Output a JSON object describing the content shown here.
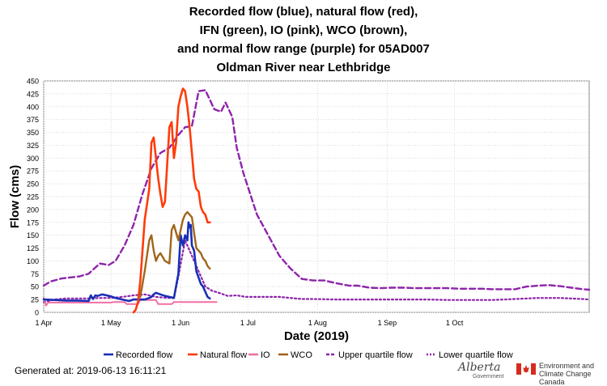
{
  "title_lines": [
    "Recorded flow (blue), natural flow (red),",
    "IFN (green), IO (pink), WCO (brown),",
    "and normal flow range (purple) for 05AD007",
    "Oldman River near Lethbridge"
  ],
  "footer": {
    "generated": "Generated at: 2019-06-13 16:11:21",
    "alberta": "Alberta",
    "alberta_sub": "Government",
    "eccc_line1": "Environment and",
    "eccc_line2": "Climate Change Canada"
  },
  "chart_data": {
    "type": "line",
    "xlabel": "Date (2019)",
    "ylabel": "Flow (cms)",
    "xlim": [
      0,
      243
    ],
    "ylim": [
      0,
      450
    ],
    "x_ticks": [
      {
        "day": 0,
        "label": "1 Apr"
      },
      {
        "day": 30,
        "label": "1 May"
      },
      {
        "day": 61,
        "label": "1 Jun"
      },
      {
        "day": 91,
        "label": "1 Jul"
      },
      {
        "day": 122,
        "label": "1 Aug"
      },
      {
        "day": 153,
        "label": "1 Sep"
      },
      {
        "day": 183,
        "label": "1 Oct"
      }
    ],
    "y_ticks": [
      0,
      25,
      50,
      75,
      100,
      125,
      150,
      175,
      200,
      225,
      250,
      275,
      300,
      325,
      350,
      375,
      400,
      425,
      450
    ],
    "grid": true,
    "legend_position": "bottom",
    "series": [
      {
        "name": "Upper quartile flow",
        "color": "#8e24aa",
        "style": "dashed",
        "width": 2.4,
        "x": [
          0,
          3,
          8,
          12,
          16,
          20,
          25,
          29,
          32,
          36,
          40,
          44,
          48,
          52,
          56,
          60,
          63,
          66,
          69,
          72,
          76,
          79,
          81,
          84,
          86,
          89,
          92,
          95,
          100,
          105,
          110,
          115,
          120,
          125,
          130,
          136,
          140,
          145,
          150,
          155,
          160,
          165,
          170,
          175,
          180,
          185,
          190,
          195,
          200,
          205,
          210,
          215,
          220,
          225,
          230,
          235,
          240,
          243
        ],
        "y": [
          52,
          60,
          66,
          68,
          70,
          75,
          95,
          92,
          100,
          130,
          170,
          230,
          280,
          310,
          320,
          345,
          360,
          362,
          430,
          432,
          395,
          390,
          408,
          380,
          320,
          270,
          230,
          190,
          150,
          110,
          85,
          65,
          62,
          62,
          57,
          52,
          52,
          48,
          47,
          48,
          48,
          47,
          47,
          47,
          47,
          46,
          46,
          46,
          45,
          45,
          45,
          50,
          52,
          53,
          51,
          48,
          45,
          44
        ]
      },
      {
        "name": "Lower quartile flow",
        "color": "#8e24aa",
        "style": "dotted",
        "width": 2.2,
        "x": [
          0,
          5,
          10,
          15,
          20,
          25,
          30,
          35,
          40,
          45,
          50,
          55,
          58,
          60,
          63,
          66,
          69,
          72,
          75,
          78,
          82,
          86,
          90,
          95,
          100,
          105,
          110,
          115,
          120,
          130,
          140,
          150,
          160,
          170,
          180,
          190,
          200,
          210,
          220,
          230,
          240,
          243
        ],
        "y": [
          20,
          25,
          27,
          27,
          27,
          28,
          28,
          30,
          33,
          35,
          30,
          28,
          28,
          70,
          140,
          110,
          80,
          50,
          42,
          38,
          32,
          33,
          30,
          30,
          30,
          30,
          28,
          26,
          26,
          25,
          25,
          25,
          25,
          25,
          24,
          24,
          24,
          26,
          28,
          28,
          26,
          25
        ]
      },
      {
        "name": "IO",
        "color": "#f06fa4",
        "style": "solid",
        "width": 2,
        "x": [
          0,
          1,
          2,
          30,
          31,
          36,
          37,
          42,
          43,
          50,
          51,
          57,
          58,
          61,
          62,
          77
        ],
        "y": [
          28,
          13,
          19,
          19,
          20,
          20,
          16,
          16,
          24,
          24,
          16,
          16,
          20,
          20,
          20,
          20
        ]
      },
      {
        "name": "Recorded flow",
        "color": "#1a2fb5",
        "style": "solid",
        "width": 2.6,
        "x": [
          0,
          5,
          10,
          15,
          20,
          21,
          22,
          23,
          24,
          26,
          28,
          30,
          32,
          35,
          38,
          40,
          45,
          47,
          48,
          49,
          50,
          52,
          54,
          56,
          58,
          60,
          61,
          62,
          63,
          64,
          64.5,
          65,
          65.5,
          66,
          67,
          68,
          70,
          71,
          72,
          73,
          74
        ],
        "y": [
          25,
          24,
          23,
          23,
          22,
          33,
          26,
          33,
          32,
          35,
          33,
          31,
          28,
          25,
          22,
          25,
          25,
          28,
          30,
          35,
          38,
          35,
          32,
          30,
          28,
          75,
          150,
          130,
          150,
          140,
          175,
          165,
          170,
          130,
          120,
          80,
          55,
          50,
          40,
          30,
          27
        ]
      },
      {
        "name": "Natural flow",
        "color": "#ff3b0a",
        "style": "solid",
        "width": 2.6,
        "x": [
          40,
          41,
          42,
          43,
          45,
          47,
          48,
          49,
          50,
          51,
          52,
          53,
          54,
          56,
          57,
          58,
          59,
          60,
          61,
          62,
          63,
          64,
          65,
          66,
          67,
          68,
          69,
          70,
          71,
          72,
          73,
          74
        ],
        "y": [
          0,
          5,
          20,
          60,
          180,
          240,
          330,
          340,
          300,
          260,
          230,
          205,
          215,
          360,
          370,
          300,
          330,
          400,
          420,
          435,
          430,
          400,
          360,
          310,
          260,
          240,
          235,
          205,
          195,
          190,
          175,
          175
        ]
      },
      {
        "name": "WCO",
        "color": "#a0651a",
        "style": "solid",
        "width": 2.4,
        "x": [
          43,
          45,
          47,
          48,
          49,
          50,
          51,
          52,
          54,
          56,
          57,
          58,
          59,
          60,
          61,
          62,
          63,
          64,
          65,
          66,
          67,
          68,
          69,
          70,
          71,
          72,
          73,
          74
        ],
        "y": [
          30,
          80,
          140,
          150,
          120,
          100,
          110,
          115,
          100,
          95,
          160,
          170,
          155,
          140,
          160,
          180,
          190,
          195,
          190,
          185,
          155,
          125,
          120,
          115,
          105,
          100,
          90,
          85
        ]
      }
    ]
  }
}
